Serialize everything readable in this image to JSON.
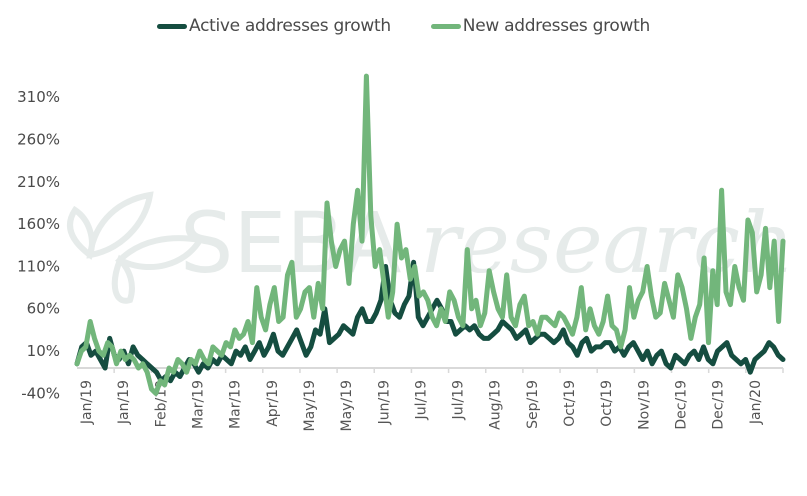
{
  "chart_data": {
    "type": "line",
    "title": "",
    "xlabel": "",
    "ylabel": "",
    "ylim": [
      -40,
      345
    ],
    "y_ticks": [
      "310%",
      "260%",
      "210%",
      "160%",
      "110%",
      "60%",
      "10%",
      "-40%"
    ],
    "y_tick_values": [
      310,
      260,
      210,
      160,
      110,
      60,
      10,
      -40
    ],
    "x_tick_labels": [
      "Jan/19",
      "Jan/19",
      "Feb/19",
      "Mar/19",
      "Mar/19",
      "Apr/19",
      "May/19",
      "May/19",
      "Jun/19",
      "Jul/19",
      "Jul/19",
      "Aug/19",
      "Sep/19",
      "Oct/19",
      "Oct/19",
      "Nov/19",
      "Dec/19",
      "Dec/19",
      "Jan/20"
    ],
    "grid": false,
    "legend_position": "top-center",
    "watermark": "SEBA research",
    "series": [
      {
        "name": "Active addresses growth",
        "color": "#154d40",
        "values": [
          5,
          25,
          30,
          15,
          20,
          10,
          0,
          35,
          15,
          10,
          20,
          5,
          25,
          15,
          10,
          5,
          0,
          -5,
          -15,
          -10,
          -15,
          -5,
          -10,
          0,
          10,
          5,
          -5,
          5,
          0,
          10,
          5,
          15,
          10,
          5,
          20,
          15,
          25,
          10,
          20,
          30,
          15,
          25,
          40,
          20,
          15,
          25,
          35,
          45,
          30,
          15,
          25,
          45,
          40,
          70,
          30,
          35,
          40,
          50,
          45,
          40,
          60,
          70,
          55,
          55,
          65,
          80,
          120,
          80,
          65,
          60,
          75,
          85,
          125,
          60,
          50,
          60,
          70,
          80,
          70,
          55,
          55,
          40,
          45,
          50,
          45,
          50,
          40,
          35,
          35,
          40,
          45,
          55,
          50,
          45,
          35,
          40,
          45,
          30,
          35,
          40,
          40,
          35,
          30,
          35,
          45,
          30,
          25,
          15,
          30,
          35,
          20,
          25,
          25,
          30,
          30,
          20,
          25,
          15,
          25,
          30,
          20,
          10,
          20,
          5,
          15,
          20,
          5,
          0,
          15,
          10,
          5,
          15,
          20,
          10,
          25,
          10,
          5,
          20,
          25,
          30,
          15,
          10,
          5,
          10,
          -5,
          10,
          15,
          20,
          30,
          25,
          15,
          10
        ],
        "points_start": 0
      },
      {
        "name": "New addresses growth",
        "color": "#72b67b",
        "values": [
          5,
          20,
          25,
          55,
          35,
          20,
          15,
          30,
          25,
          5,
          20,
          10,
          15,
          10,
          0,
          5,
          -5,
          -25,
          -30,
          -15,
          -20,
          0,
          -5,
          10,
          5,
          -5,
          10,
          5,
          20,
          10,
          5,
          25,
          20,
          15,
          30,
          25,
          45,
          35,
          40,
          55,
          30,
          95,
          60,
          45,
          75,
          95,
          55,
          60,
          110,
          125,
          60,
          70,
          90,
          95,
          60,
          100,
          70,
          195,
          150,
          120,
          140,
          150,
          100,
          170,
          210,
          150,
          345,
          180,
          120,
          140,
          100,
          60,
          90,
          170,
          130,
          140,
          105,
          120,
          85,
          90,
          80,
          60,
          50,
          70,
          55,
          90,
          80,
          60,
          50,
          140,
          70,
          80,
          50,
          65,
          115,
          90,
          70,
          60,
          110,
          60,
          50,
          75,
          85,
          50,
          55,
          40,
          60,
          60,
          55,
          50,
          65,
          60,
          50,
          40,
          60,
          95,
          45,
          70,
          50,
          40,
          55,
          85,
          50,
          45,
          25,
          45,
          95,
          60,
          80,
          90,
          120,
          85,
          60,
          65,
          100,
          80,
          60,
          110,
          95,
          70,
          35,
          60,
          75,
          130,
          30,
          115,
          75,
          210,
          90,
          75,
          120,
          95,
          80,
          175,
          160,
          90,
          110,
          165,
          95,
          150,
          55,
          150
        ],
        "points_start": 0
      }
    ]
  }
}
